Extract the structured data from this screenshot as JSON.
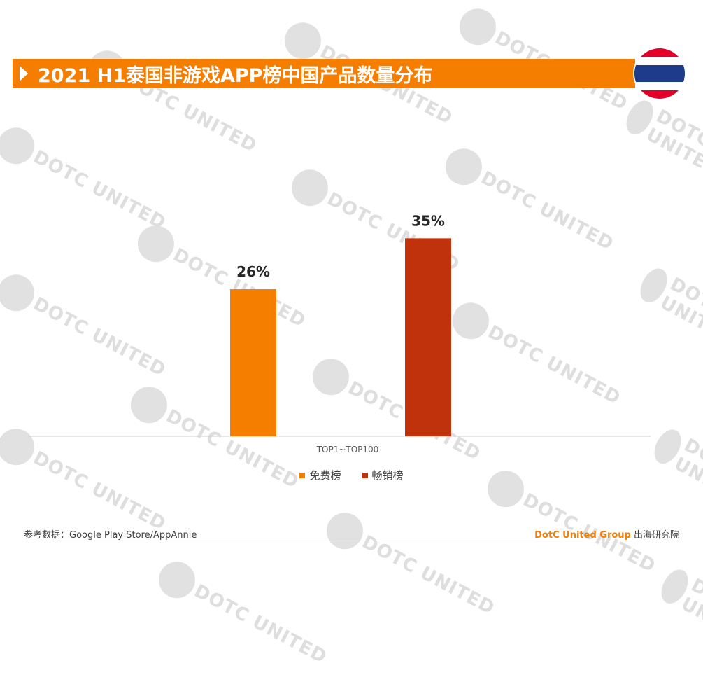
{
  "title": "2021 H1泰国非游戏APP榜中国产品数量分布",
  "watermark_text": "DOTC UNITED",
  "flag_colors": {
    "red": "#e4002b",
    "white": "#ffffff",
    "blue": "#1e3a8a"
  },
  "chart_data": {
    "type": "bar",
    "categories": [
      "TOP1~TOP100"
    ],
    "series": [
      {
        "name": "免费榜",
        "values": [
          26
        ],
        "label": "26%",
        "color": "#f57d00"
      },
      {
        "name": "畅销榜",
        "values": [
          35
        ],
        "label": "35%",
        "color": "#c0320b"
      }
    ],
    "ylim": [
      0,
      40
    ],
    "unit": "%",
    "grid": false,
    "legend_position": "bottom"
  },
  "footer": {
    "source": "参考数据：Google Play Store/AppAnnie",
    "brand": "DotC United Group",
    "institute": " 出海研究院"
  }
}
